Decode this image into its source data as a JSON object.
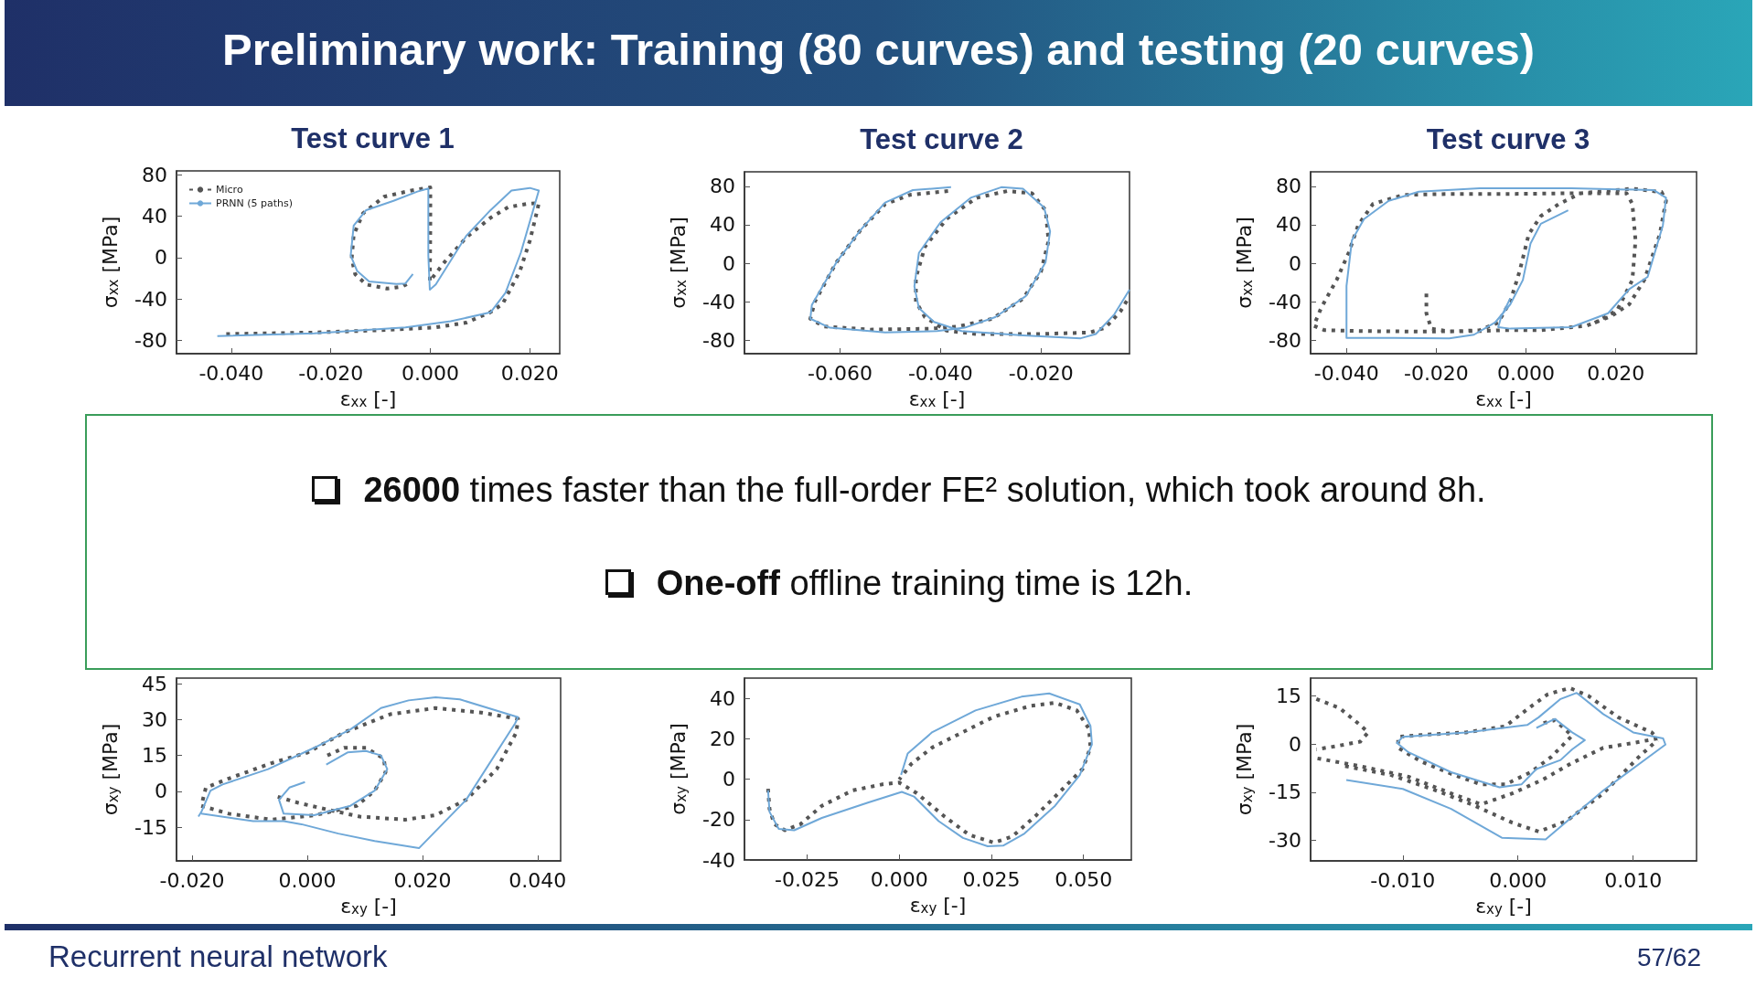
{
  "chart_data": [
    {
      "type": "line",
      "title": "Test curve 1",
      "xlabel": "ε$_{xx}$ [-]",
      "ylabel": "σ$_{xx}$ [MPa]",
      "legend": "top left",
      "xlim": [
        -0.051,
        0.026
      ],
      "ylim": [
        -93,
        84
      ],
      "xticks": [
        {
          "value": -0.04,
          "label": "-0.040"
        },
        {
          "value": -0.02,
          "label": "-0.020"
        },
        {
          "value": 0,
          "label": "0.000"
        },
        {
          "value": 0.02,
          "label": "0.020"
        }
      ],
      "yticks": [
        80,
        40,
        0,
        -40,
        -80
      ],
      "series": [
        {
          "name": "Micro",
          "color": "#555555",
          "line_style": "dotted",
          "x": [
            -0.041,
            -0.0233,
            -0.011,
            0.0011,
            0.0072,
            0.012,
            0.0145,
            0.018,
            0.02,
            0.0215,
            0.0218,
            0.0194,
            0.0157,
            0.0121,
            0.0072,
            0.0029,
            0.0005,
            -0.0001,
            0,
            0,
            -0.0038,
            -0.0093,
            -0.0135,
            -0.0154,
            -0.0158,
            -0.0151,
            -0.0129,
            -0.0087,
            -0.0056,
            -0.0038
          ],
          "values": [
            -74,
            -72.5,
            -70.4,
            -67.5,
            -63,
            -53,
            -45,
            -13,
            16.5,
            46,
            53,
            52,
            49,
            38.6,
            19.4,
            -4,
            -19,
            -23,
            31,
            68,
            65,
            59,
            43,
            22,
            -1,
            -16,
            -26,
            -30,
            -28,
            -23
          ]
        },
        {
          "name": "PRNN (5 paths)",
          "color": "#6fa8d8",
          "line_style": "solid",
          "x": [
            -0.0428,
            -0.0233,
            -0.005,
            0.0041,
            0.0121,
            0.0151,
            0.0182,
            0.0218,
            0.02,
            0.0163,
            0.0121,
            0.0072,
            0.0011,
            -0.0001,
            -0.0004,
            -0.0004,
            -0.0026,
            -0.0074,
            -0.0129,
            -0.0154,
            -0.016,
            -0.0147,
            -0.0123,
            -0.0068,
            -0.005,
            -0.0035
          ],
          "values": [
            -76,
            -73.4,
            -67.5,
            -61.6,
            -53,
            -34,
            5,
            65,
            67.5,
            65,
            46,
            21,
            -26,
            -31,
            2,
            67,
            64,
            55,
            46,
            31,
            2,
            -13,
            -23,
            -25.6,
            -25,
            -16
          ]
        }
      ]
    },
    {
      "type": "line",
      "title": "Test curve 2",
      "xlabel": "ε$_{xx}$ [-]",
      "ylabel": "σ$_{xx}$ [MPa]",
      "xlim": [
        -0.079,
        -0.0024
      ],
      "ylim": [
        -94,
        95
      ],
      "xticks": [
        {
          "value": -0.06,
          "label": "-0.060"
        },
        {
          "value": -0.04,
          "label": "-0.040"
        },
        {
          "value": -0.02,
          "label": "-0.020"
        }
      ],
      "yticks": [
        80,
        40,
        0,
        -40,
        -80
      ],
      "series": [
        {
          "color": "#555555",
          "line_style": "dotted",
          "x": [
            -0.0385,
            -0.0461,
            -0.051,
            -0.0559,
            -0.0607,
            -0.065,
            -0.0659,
            -0.0632,
            -0.054,
            -0.0419,
            -0.0364,
            -0.0297,
            -0.0236,
            -0.02,
            -0.0185,
            -0.0191,
            -0.0218,
            -0.0267,
            -0.0328,
            -0.0388,
            -0.0431,
            -0.0449,
            -0.0449,
            -0.0431,
            -0.0388,
            -0.0328,
            -0.0206,
            -0.0103,
            -0.0072,
            -0.0042,
            -0.0027
          ],
          "values": [
            75,
            71,
            61.5,
            34.5,
            1,
            -40,
            -57.7,
            -65.7,
            -69,
            -68,
            -65.7,
            -57.7,
            -37,
            -8.5,
            23.4,
            55,
            72.7,
            75,
            68,
            46,
            17,
            -15,
            -40,
            -56,
            -70,
            -73.6,
            -73.6,
            -72,
            -67,
            -50,
            -37
          ]
        },
        {
          "color": "#6fa8d8",
          "line_style": "solid",
          "x": [
            -0.0379,
            -0.0455,
            -0.051,
            -0.0559,
            -0.0607,
            -0.0656,
            -0.0659,
            -0.062,
            -0.051,
            -0.0407,
            -0.0352,
            -0.0291,
            -0.023,
            -0.0191,
            -0.0182,
            -0.0194,
            -0.0236,
            -0.0279,
            -0.034,
            -0.04,
            -0.0443,
            -0.0452,
            -0.0443,
            -0.0413,
            -0.0358,
            -0.0236,
            -0.0121,
            -0.0091,
            -0.0054,
            -0.0024
          ],
          "values": [
            79,
            76,
            63,
            34.5,
            1,
            -43.5,
            -57.7,
            -67,
            -72,
            -70.5,
            -67,
            -56,
            -34,
            1,
            33,
            58,
            77.5,
            79,
            68,
            42.5,
            10.7,
            -24,
            -46.6,
            -61,
            -70.5,
            -75,
            -78,
            -73.6,
            -53,
            -27.5
          ]
        }
      ]
    },
    {
      "type": "line",
      "title": "Test curve 3",
      "xlabel": "ε$_{xx}$ [-]",
      "ylabel": "σ$_{xx}$ [MPa]",
      "xlim": [
        -0.048,
        0.038
      ],
      "ylim": [
        -94,
        95
      ],
      "xticks": [
        {
          "value": -0.04,
          "label": "-0.040"
        },
        {
          "value": -0.02,
          "label": "-0.020"
        },
        {
          "value": 0,
          "label": "0.000"
        },
        {
          "value": 0.02,
          "label": "0.020"
        }
      ],
      "yticks": [
        80,
        40,
        0,
        -40,
        -80
      ],
      "series": [
        {
          "color": "#555555",
          "line_style": "dotted",
          "x": [
            -0.0222,
            -0.0222,
            -0.0211,
            -0.0171,
            -0.0103,
            -0.0062,
            -0.0035,
            -0.0014,
            0.0006,
            0.0033,
            0.0074,
            0.0122,
            0.0237,
            0.0302,
            0.0312,
            0.0298,
            0.0264,
            0.023,
            0.019,
            0.0135,
            0.0033,
            -0.0055,
            -0.0103,
            -0.0239,
            -0.0361,
            -0.0449,
            -0.0473,
            -0.0456,
            -0.0422,
            -0.0395,
            -0.0374,
            -0.0341,
            -0.0273,
            -0.0171,
            -0.0035,
            0.0101,
            0.0224,
            0.0237,
            0.0244,
            0.0237,
            0.0203,
            0.0149
          ],
          "values": [
            -31.6,
            -52,
            -68,
            -71,
            -69.6,
            -61.7,
            -39.5,
            -8,
            30,
            49,
            61.7,
            72.7,
            77.5,
            74,
            65,
            30,
            -17,
            -42.7,
            -55,
            -65,
            -69.6,
            -69.6,
            -70.5,
            -71,
            -70.5,
            -69.6,
            -65,
            -46,
            -17.4,
            11,
            39.5,
            61.7,
            71,
            72,
            72,
            72.7,
            72.7,
            61.7,
            23.7,
            -17.4,
            -49,
            -63
          ]
        },
        {
          "color": "#6fa8d8",
          "line_style": "solid",
          "x": [
            0.0094,
            0.0033,
            0.001,
            -0.0007,
            -0.0035,
            -0.0069,
            -0.0116,
            -0.0171,
            -0.0306,
            -0.04,
            -0.04,
            -0.0388,
            -0.0361,
            -0.0306,
            -0.0239,
            -0.0103,
            0.0101,
            0.0285,
            0.0312,
            0.0305,
            0.0271,
            0.023,
            0.0183,
            0.0101,
            -0.0035,
            -0.0062,
            -0.0055,
            -0.0035
          ],
          "values": [
            55,
            41,
            20.5,
            -17.4,
            -42.7,
            -61.7,
            -74.3,
            -78,
            -77.5,
            -77.5,
            -23.7,
            23.7,
            45.9,
            64.8,
            74.3,
            78,
            78,
            75.9,
            68,
            39.5,
            -14.2,
            -27,
            -52,
            -66.4,
            -68,
            -66.4,
            -55.3,
            -36.4
          ]
        }
      ]
    },
    {
      "type": "line",
      "xlabel": "ε$_{xy}$ [-]",
      "ylabel": "σ$_{xy}$ [MPa]",
      "xlim": [
        -0.0227,
        0.044
      ],
      "ylim": [
        -29,
        47.3
      ],
      "xticks": [
        {
          "value": -0.02,
          "label": "-0.020"
        },
        {
          "value": 0,
          "label": "0.000"
        },
        {
          "value": 0.02,
          "label": "0.020"
        },
        {
          "value": 0.04,
          "label": "0.040"
        }
      ],
      "yticks": [
        45,
        30,
        15,
        0,
        -15
      ],
      "series": [
        {
          "color": "#555555",
          "line_style": "dotted",
          "x": [
            0.0035,
            0.0064,
            0.0102,
            0.0133,
            0.0136,
            0.0117,
            0.0086,
            0.0012,
            -0.0062,
            -0.0136,
            -0.0184,
            -0.0176,
            -0.0136,
            -0.0062,
            0.0001,
            0.0064,
            0.0144,
            0.0223,
            0.0302,
            0.0366,
            0.0363,
            0.0329,
            0.0276,
            0.0223,
            0.017,
            0.0091,
            0.0043,
            -0.0015,
            -0.0052
          ],
          "values": [
            15,
            18.2,
            18.2,
            13.7,
            8,
            0.3,
            -6,
            -10,
            -11.8,
            -9.3,
            -6,
            1.6,
            5.4,
            11.8,
            16.3,
            24.6,
            32.2,
            34.8,
            32.9,
            30.3,
            24.6,
            9.3,
            -3.5,
            -9.9,
            -11.8,
            -10.5,
            -8,
            -4.8,
            -2.2
          ]
        },
        {
          "color": "#6fa8d8",
          "line_style": "solid",
          "x": [
            -0.0004,
            -0.0031,
            -0.0049,
            -0.0041,
            0.0012,
            0.0075,
            0.0117,
            0.0139,
            0.0128,
            0.0102,
            0.007,
            0.0033,
            null,
            -0.0189,
            -0.0184,
            -0.0168,
            -0.0147,
            -0.0068,
            0.0012,
            0.0075,
            0.0128,
            0.0176,
            0.0223,
            0.0265,
            0.0366,
            0.0361,
            0.0276,
            0.0194,
            0.0117,
            0.0054,
            -0.001,
            -0.0041,
            -0.0094,
            -0.0184
          ],
          "values": [
            3.9,
            1.6,
            -3.5,
            -9.3,
            -9.9,
            -6,
            0.3,
            9.3,
            15,
            16.9,
            16.3,
            11.2,
            null,
            -10.5,
            -8.6,
            0.3,
            2.9,
            9.3,
            18.2,
            25.9,
            34.8,
            38,
            39.3,
            38.4,
            31,
            28.4,
            -3.5,
            -23.7,
            -20.7,
            -17.6,
            -13.7,
            -12.4,
            -12.4,
            -9.3
          ]
        }
      ]
    },
    {
      "type": "line",
      "xlabel": "ε$_{xy}$ [-]",
      "ylabel": "σ$_{xy}$ [MPa]",
      "xlim": [
        -0.042,
        0.063
      ],
      "ylim": [
        -40,
        50
      ],
      "xticks": [
        {
          "value": -0.025,
          "label": "-0.025"
        },
        {
          "value": 0,
          "label": "0.000"
        },
        {
          "value": 0.025,
          "label": "0.025"
        },
        {
          "value": 0.05,
          "label": "0.050"
        }
      ],
      "yticks": [
        40,
        20,
        0,
        -20,
        -40
      ],
      "series": [
        {
          "color": "#555555",
          "line_style": "dotted",
          "x": [
            -0.0356,
            -0.0352,
            -0.0339,
            -0.031,
            -0.0268,
            -0.021,
            -0.0127,
            -0.0043,
            0,
            0.0048,
            0.0123,
            0.019,
            0.0257,
            0.0307,
            0.0373,
            0.0432,
            0.0498,
            0.0519,
            0.0515,
            0.0482,
            0.0423,
            0.0357,
            0.0257,
            0.0173,
            0.009,
            0.0032,
            0
          ],
          "values": [
            -4.8,
            -14.7,
            -22.3,
            -25.3,
            -22.3,
            -13.2,
            -5.6,
            -2.5,
            -1.7,
            -7,
            -18.5,
            -27.6,
            -31.4,
            -28.4,
            -17.7,
            -7,
            5.1,
            15.7,
            24.9,
            34,
            37.8,
            36.3,
            30.9,
            23.3,
            15.7,
            7.4,
            -0.2
          ]
        },
        {
          "color": "#6fa8d8",
          "line_style": "solid",
          "x": [
            -0.0356,
            -0.0352,
            -0.0327,
            -0.0285,
            -0.021,
            -0.0085,
            0.0007,
            0.004,
            0.0107,
            0.0173,
            0.024,
            0.0282,
            0.034,
            0.0423,
            0.049,
            0.0523,
            0.0519,
            0.049,
            0.0407,
            0.0332,
            0.0207,
            0.009,
            0.0023,
            0.0005
          ],
          "values": [
            -5.5,
            -16.2,
            -24.6,
            -25.3,
            -19.2,
            -11.6,
            -6.3,
            -8.6,
            -20.8,
            -29.1,
            -33.2,
            -32.9,
            -26.9,
            -13.2,
            2,
            17.3,
            26.4,
            37,
            42.4,
            40.8,
            34,
            23.3,
            12.7,
            2.1
          ]
        }
      ]
    },
    {
      "type": "line",
      "xlabel": "ε$_{xy}$ [-]",
      "ylabel": "σ$_{xy}$ [MPa]",
      "xlim": [
        -0.018,
        0.0155
      ],
      "ylim": [
        -36.4,
        20.5
      ],
      "xticks": [
        {
          "value": -0.01,
          "label": "-0.010"
        },
        {
          "value": 0,
          "label": "0.000"
        },
        {
          "value": 0.01,
          "label": "0.010"
        }
      ],
      "yticks": [
        15,
        0,
        -15,
        -30
      ],
      "series": [
        {
          "color": "#555555",
          "line_style": "dotted",
          "x": [
            -0.0175,
            -0.0155,
            -0.0137,
            -0.013,
            -0.0137,
            -0.0158,
            -0.0175,
            null,
            -0.0174,
            -0.0137,
            -0.0095,
            -0.0058,
            -0.0032,
            -0.0005,
            0.0021,
            0.0047,
            0.0074,
            0.01,
            0.0121,
            0.0116,
            0.0087,
            0.0061,
            0.0045,
            0.0026,
            0.0011,
            -0.0011,
            -0.0045,
            -0.0084,
            -0.0104,
            -0.0104,
            -0.0084,
            -0.0058,
            -0.0032,
            -0.0011,
            0.0011,
            0.0029,
            0.0047,
            0.0032,
            0.0021,
            null,
            -0.015,
            -0.011,
            -0.0071,
            -0.0037,
            -0.0005,
            0.0018,
            0.0042,
            0.0074,
            0.0105,
            0.0121
          ],
          "values": [
            14,
            11.2,
            5.9,
            3.6,
            0.7,
            -0.7,
            -1.7,
            null,
            -4.5,
            -6.9,
            -10.2,
            -15.4,
            -18.8,
            -15.4,
            -11.2,
            -5.9,
            -1.2,
            0.3,
            1.7,
            3.6,
            8.3,
            15,
            17.4,
            15.5,
            11.6,
            5.5,
            3.6,
            2.8,
            2.2,
            -1.2,
            -5.5,
            -9.3,
            -12.6,
            -12.6,
            -8.8,
            -4,
            2.6,
            7.4,
            6.4,
            null,
            -6.9,
            -9.7,
            -14.5,
            -19.3,
            -24.5,
            -27.3,
            -24,
            -15.4,
            -4,
            1.2
          ]
        },
        {
          "color": "#6fa8d8",
          "line_style": "solid",
          "x": [
            -0.0149,
            -0.01,
            -0.0058,
            -0.0014,
            0.0024,
            0.0074,
            0.0128,
            0.0126,
            0.01,
            0.0074,
            0.0051,
            0.0037,
            0.0018,
            0.0008,
            -0.0045,
            -0.01,
            -0.0105,
            -0.0095,
            -0.0058,
            -0.0016,
            0.0003,
            0.0016,
            0.0037,
            0.0047,
            0.0058,
            0.0047,
            0.0032,
            0.0016
          ],
          "values": [
            -11.2,
            -14,
            -20.2,
            -29.2,
            -29.7,
            -14.5,
            -0.2,
            1.7,
            3.6,
            9.3,
            15.9,
            14,
            8.3,
            5.9,
            3.6,
            2.2,
            0.3,
            -2.6,
            -8.8,
            -13.5,
            -12.6,
            -7.8,
            -5,
            -1.7,
            1.2,
            3.6,
            7.8,
            5
          ]
        }
      ]
    },
    {
      "type": "other",
      "title": "Preliminary work: Training (80 curves) and testing (20 curves)",
      "annotations": [
        "26000 times faster than the full-order FE² solution, which took around 8h.",
        "One-off offline training time is 12h.",
        "Recurrent neural network",
        "57/62"
      ]
    }
  ]
}
